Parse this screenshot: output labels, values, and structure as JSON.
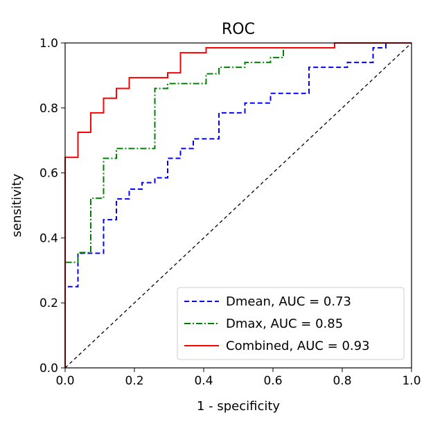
{
  "chart_data": {
    "type": "line",
    "title": "ROC",
    "xlabel": "1 - specificity",
    "ylabel": "sensitivity",
    "xlim": [
      0.0,
      1.0
    ],
    "ylim": [
      0.0,
      1.0
    ],
    "x_ticks": [
      0.0,
      0.2,
      0.4,
      0.6,
      0.8,
      1.0
    ],
    "y_ticks": [
      0.0,
      0.2,
      0.4,
      0.6,
      0.8,
      1.0
    ],
    "x_tick_labels": [
      "0.0",
      "0.2",
      "0.4",
      "0.6",
      "0.8",
      "1.0"
    ],
    "y_tick_labels": [
      "0.0",
      "0.2",
      "0.4",
      "0.6",
      "0.8",
      "1.0"
    ],
    "grid": false,
    "legend_position": "lower-right",
    "series": [
      {
        "name": "Dmean, AUC = 0.73",
        "color": "#0000ff",
        "line_style": "dashed",
        "x": [
          0,
          0,
          0.037,
          0.037,
          0.111,
          0.111,
          0.148,
          0.148,
          0.185,
          0.185,
          0.222,
          0.222,
          0.259,
          0.259,
          0.296,
          0.296,
          0.333,
          0.333,
          0.37,
          0.37,
          0.444,
          0.444,
          0.519,
          0.519,
          0.593,
          0.593,
          0.704,
          0.704,
          0.815,
          0.815,
          0.889,
          0.889,
          0.926,
          0.926,
          1.0
        ],
        "y": [
          0,
          0.25,
          0.25,
          0.353,
          0.353,
          0.456,
          0.456,
          0.52,
          0.52,
          0.55,
          0.55,
          0.57,
          0.57,
          0.585,
          0.585,
          0.645,
          0.645,
          0.675,
          0.675,
          0.705,
          0.705,
          0.785,
          0.785,
          0.815,
          0.815,
          0.845,
          0.845,
          0.925,
          0.925,
          0.94,
          0.94,
          0.985,
          0.985,
          1.0,
          1.0
        ]
      },
      {
        "name": "Dmax, AUC = 0.85",
        "color": "#008000",
        "line_style": "dashdot",
        "x": [
          0,
          0,
          0.037,
          0.037,
          0.074,
          0.074,
          0.111,
          0.111,
          0.148,
          0.148,
          0.259,
          0.259,
          0.296,
          0.296,
          0.407,
          0.407,
          0.444,
          0.444,
          0.519,
          0.519,
          0.593,
          0.593,
          0.63,
          0.63,
          0.778,
          0.778,
          1.0
        ],
        "y": [
          0,
          0.325,
          0.325,
          0.355,
          0.355,
          0.522,
          0.522,
          0.645,
          0.645,
          0.675,
          0.675,
          0.86,
          0.86,
          0.875,
          0.875,
          0.905,
          0.905,
          0.925,
          0.925,
          0.94,
          0.94,
          0.955,
          0.955,
          0.985,
          0.985,
          1.0,
          1.0
        ]
      },
      {
        "name": "Combined, AUC = 0.93",
        "color": "#ff0000",
        "line_style": "solid",
        "x": [
          0,
          0,
          0.037,
          0.037,
          0.074,
          0.074,
          0.111,
          0.111,
          0.148,
          0.148,
          0.185,
          0.185,
          0.296,
          0.296,
          0.333,
          0.333,
          0.407,
          0.407,
          0.778,
          0.778,
          1.0
        ],
        "y": [
          0,
          0.648,
          0.648,
          0.725,
          0.725,
          0.785,
          0.785,
          0.83,
          0.83,
          0.86,
          0.86,
          0.893,
          0.893,
          0.908,
          0.908,
          0.97,
          0.97,
          0.985,
          0.985,
          1.0,
          1.0
        ]
      },
      {
        "name": "",
        "color": "#000000",
        "line_style": "dashed",
        "x": [
          0.0,
          1.0
        ],
        "y": [
          0.0,
          1.0
        ]
      }
    ]
  }
}
